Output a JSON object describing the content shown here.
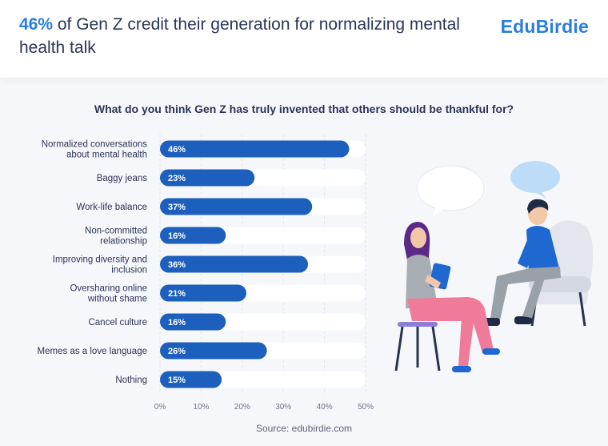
{
  "header": {
    "headline_highlight": "46%",
    "headline_rest": "of Gen Z credit their generation for normalizing mental health talk",
    "logo": "EduBirdie"
  },
  "source": "Source: edubirdie.com",
  "colors": {
    "accent": "#2a7de1",
    "bar": "#1c5fbd",
    "track": "#ffffff",
    "text": "#2a3557",
    "background": "#f6f7fb"
  },
  "chart_data": {
    "type": "bar",
    "orientation": "horizontal",
    "title": "What do you think Gen Z has truly invented that others should be thankful for?",
    "categories": [
      [
        "Normalized conversations",
        "about mental health"
      ],
      [
        "Baggy jeans"
      ],
      [
        "Work-life balance"
      ],
      [
        "Non-committed",
        "relationship"
      ],
      [
        "Improving diversity and",
        "inclusion"
      ],
      [
        "Oversharing online",
        "without shame"
      ],
      [
        "Cancel culture"
      ],
      [
        "Memes as a love language"
      ],
      [
        "Nothing"
      ]
    ],
    "values": [
      46,
      23,
      37,
      16,
      36,
      21,
      16,
      26,
      15
    ],
    "value_labels": [
      "46%",
      "23%",
      "37%",
      "16%",
      "36%",
      "21%",
      "16%",
      "26%",
      "15%"
    ],
    "xlim": [
      0,
      50
    ],
    "xticks": [
      0,
      10,
      20,
      30,
      40,
      50
    ],
    "xtick_labels": [
      "0%",
      "10%",
      "20%",
      "30%",
      "40%",
      "50%"
    ],
    "xlabel": "",
    "ylabel": "",
    "grid": true
  }
}
